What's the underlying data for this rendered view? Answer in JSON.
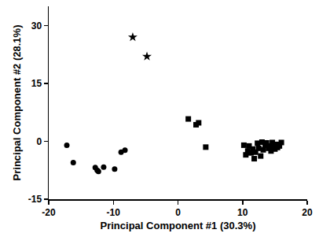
{
  "chart_data": {
    "type": "scatter",
    "x_label": "Principal Component #1 (30.3%)",
    "y_label": "Principal Component #2 (28.1%)",
    "xlim": [
      -20,
      20
    ],
    "xticks": [
      -20,
      -10,
      0,
      10,
      20
    ],
    "ylim": [
      -15,
      35
    ],
    "yticks": [
      -15,
      0,
      15,
      30
    ],
    "grid": false,
    "series": [
      {
        "marker": "circle",
        "color": "#000000",
        "x": [
          -17.2,
          -16.2,
          -12.8,
          -12.5,
          -12.3,
          -11.5,
          -9.8,
          -8.8,
          -8.2
        ],
        "values": [
          -1.0,
          -5.5,
          -6.8,
          -7.5,
          -7.8,
          -6.7,
          -7.2,
          -2.8,
          -2.3
        ]
      },
      {
        "marker": "star",
        "color": "#000000",
        "x": [
          -7.0,
          -4.8
        ],
        "values": [
          27.0,
          22.0
        ]
      },
      {
        "marker": "square",
        "color": "#000000",
        "x": [
          1.6,
          2.8,
          3.2,
          4.3,
          10.2,
          10.5,
          10.8,
          11.0,
          11.3,
          11.6,
          11.8,
          12.0,
          12.3,
          12.5,
          12.8,
          13.0,
          13.2,
          13.5,
          13.7,
          14.0,
          14.2,
          14.4,
          14.6,
          14.8,
          15.0,
          15.2,
          15.4,
          15.7,
          16.0
        ],
        "values": [
          5.8,
          4.3,
          4.8,
          -1.5,
          -1.0,
          -3.5,
          -2.5,
          -1.2,
          -3.0,
          -2.0,
          -4.5,
          -2.8,
          -0.5,
          -1.8,
          -3.8,
          -0.2,
          -2.2,
          -1.0,
          -0.4,
          -1.8,
          -1.2,
          -2.5,
          -0.3,
          -1.5,
          -2.0,
          -0.8,
          -1.6,
          -1.2,
          -0.3
        ]
      }
    ]
  }
}
